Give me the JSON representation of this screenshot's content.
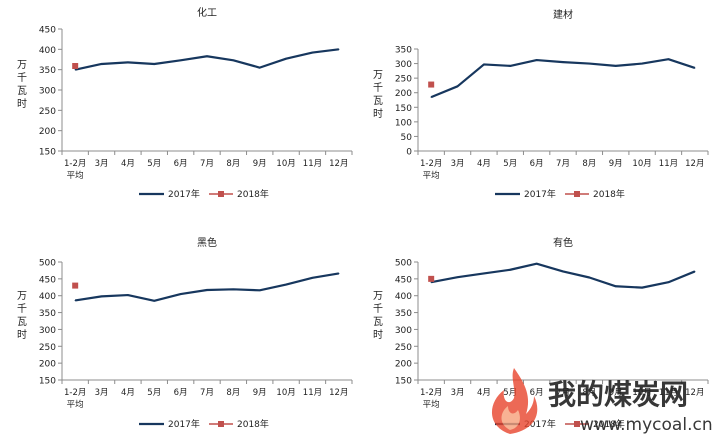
{
  "chart_data": [
    {
      "type": "line",
      "title": "化工",
      "ylabel": "万千瓦时",
      "categories": [
        "1-2月\n平均",
        "3月",
        "4月",
        "5月",
        "6月",
        "7月",
        "8月",
        "9月",
        "10月",
        "11月",
        "12月"
      ],
      "ylim": [
        150,
        450
      ],
      "yticks": [
        150,
        200,
        250,
        300,
        350,
        400,
        450
      ],
      "series": [
        {
          "name": "2017年",
          "color": "#17375e",
          "style": "line",
          "values": [
            350,
            364,
            368,
            364,
            373,
            383,
            373,
            355,
            377,
            392,
            400
          ]
        },
        {
          "name": "2018年",
          "color": "#c0504d",
          "style": "marker",
          "values": [
            359,
            null,
            null,
            null,
            null,
            null,
            null,
            null,
            null,
            null,
            null
          ]
        }
      ],
      "legend": "bottom"
    },
    {
      "type": "line",
      "title": "建材",
      "ylabel": "万千瓦时",
      "categories": [
        "1-2月\n平均",
        "3月",
        "4月",
        "5月",
        "6月",
        "7月",
        "8月",
        "9月",
        "10月",
        "11月",
        "12月"
      ],
      "ylim": [
        0,
        350
      ],
      "yticks": [
        0,
        50,
        100,
        150,
        200,
        250,
        300,
        350
      ],
      "series": [
        {
          "name": "2017年",
          "color": "#17375e",
          "style": "line",
          "values": [
            185,
            222,
            297,
            292,
            312,
            305,
            300,
            292,
            300,
            315,
            285
          ]
        },
        {
          "name": "2018年",
          "color": "#c0504d",
          "style": "marker",
          "values": [
            228,
            null,
            null,
            null,
            null,
            null,
            null,
            null,
            null,
            null,
            null
          ]
        }
      ],
      "legend": "bottom"
    },
    {
      "type": "line",
      "title": "黑色",
      "ylabel": "万千瓦时",
      "categories": [
        "1-2月\n平均",
        "3月",
        "4月",
        "5月",
        "6月",
        "7月",
        "8月",
        "9月",
        "10月",
        "11月",
        "12月"
      ],
      "ylim": [
        150,
        500
      ],
      "yticks": [
        150,
        200,
        250,
        300,
        350,
        400,
        450,
        500
      ],
      "series": [
        {
          "name": "2017年",
          "color": "#17375e",
          "style": "line",
          "values": [
            386,
            398,
            402,
            385,
            405,
            417,
            419,
            416,
            433,
            453,
            466
          ]
        },
        {
          "name": "2018年",
          "color": "#c0504d",
          "style": "marker",
          "values": [
            430,
            null,
            null,
            null,
            null,
            null,
            null,
            null,
            null,
            null,
            null
          ]
        }
      ],
      "legend": "bottom"
    },
    {
      "type": "line",
      "title": "有色",
      "ylabel": "万千瓦时",
      "categories": [
        "1-2月\n平均",
        "3月",
        "4月",
        "5月",
        "6月",
        "7月",
        "8月",
        "9月",
        "10月",
        "11月",
        "12月"
      ],
      "ylim": [
        150,
        500
      ],
      "yticks": [
        150,
        200,
        250,
        300,
        350,
        400,
        450,
        500
      ],
      "series": [
        {
          "name": "2017年",
          "color": "#17375e",
          "style": "line",
          "values": [
            440,
            455,
            466,
            477,
            495,
            472,
            454,
            428,
            424,
            440,
            472
          ]
        },
        {
          "name": "2018年",
          "color": "#c0504d",
          "style": "marker",
          "values": [
            450,
            null,
            null,
            null,
            null,
            null,
            null,
            null,
            null,
            null,
            null
          ]
        }
      ],
      "legend": "bottom"
    }
  ],
  "watermark": {
    "brand": "我的煤炭网",
    "url": "www.mycoal.cn",
    "colors": {
      "flame": "#e8442c",
      "text": "#c8c8c8"
    }
  },
  "colors": {
    "axis": "#8c8c8c",
    "series_2017": "#17375e",
    "series_2018": "#c0504d"
  }
}
